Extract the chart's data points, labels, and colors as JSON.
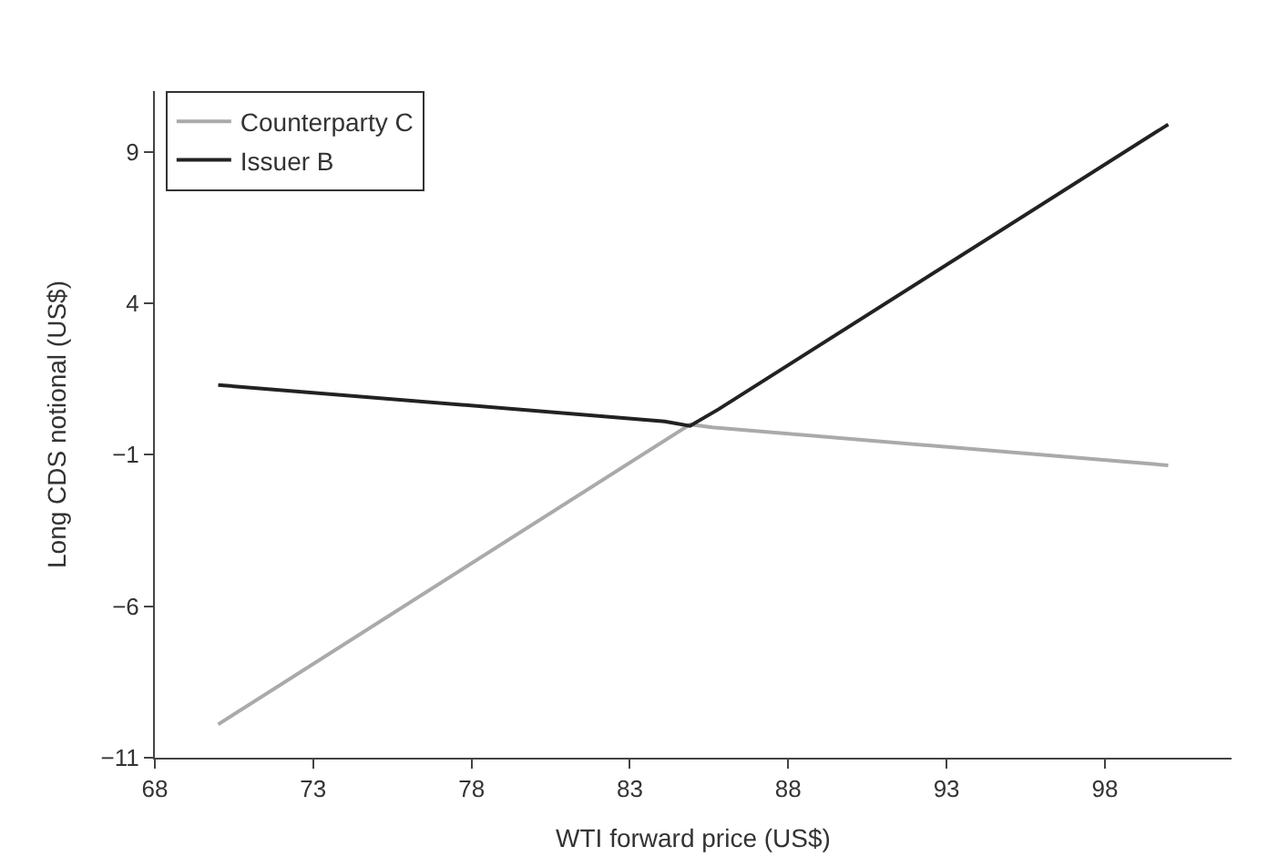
{
  "chart_data": {
    "type": "line",
    "xlabel": "WTI forward price (US$)",
    "ylabel": "Long CDS notional (US$)",
    "xlim": [
      68,
      102
    ],
    "xticks": [
      68,
      73,
      78,
      83,
      88,
      93,
      98
    ],
    "ylim": [
      -11,
      11
    ],
    "yticks": [
      -11,
      -6,
      -1,
      4,
      9
    ],
    "legend": "top left",
    "marker": "none",
    "line_style": "solid",
    "series": [
      {
        "name": "Counterparty C",
        "color": "#aaaaaa",
        "x": [
          70,
          84.9,
          85.6,
          100
        ],
        "values": [
          -9.9,
          0.0,
          -0.1,
          -1.35
        ]
      },
      {
        "name": "Issuer B",
        "color": "#222222",
        "x": [
          70,
          84.1,
          84.9,
          85.8,
          100
        ],
        "values": [
          1.3,
          0.1,
          -0.05,
          0.5,
          9.9
        ]
      }
    ]
  }
}
